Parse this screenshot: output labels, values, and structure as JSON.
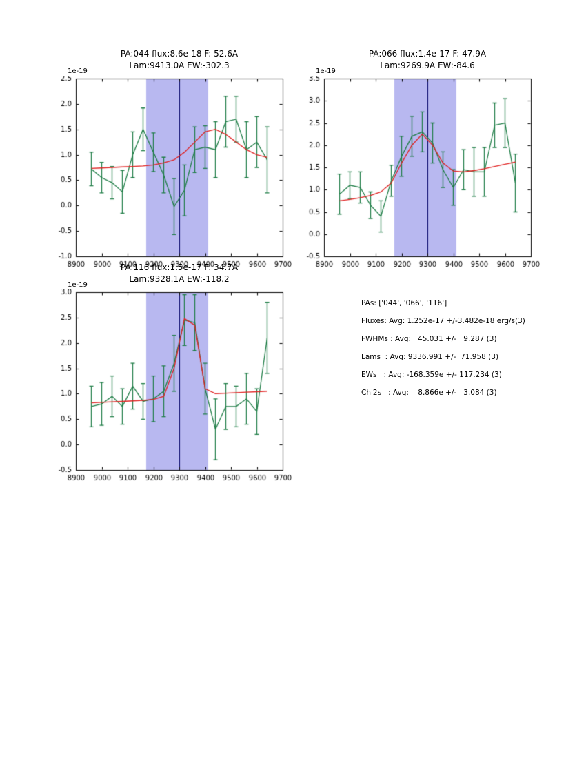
{
  "page": {
    "background": "#ffffff"
  },
  "stats": {
    "lines": [
      "PAs: ['044', '066', '116']",
      "Fluxes: Avg: 1.252e-17 +/-3.482e-18 erg/s(3)",
      "FWHMs : Avg:   45.031 +/-   9.287 (3)",
      "Lams  : Avg: 9336.991 +/-  71.958 (3)",
      "EWs   : Avg: -168.359e +/- 117.234 (3)",
      "Chi2s   : Avg:    8.866e +/-   3.084 (3)"
    ]
  },
  "chart_data": [
    {
      "type": "line",
      "title_line1": "PA:044 flux:8.6e-18 F: 52.6A",
      "title_line2": "Lam:9413.0A EW:-302.3",
      "offset_label": "1e-19",
      "xlabel": "",
      "ylabel": "",
      "xlim": [
        8900,
        9700
      ],
      "ylim": [
        -1.0,
        2.5
      ],
      "xticks": [
        8900,
        9000,
        9100,
        9200,
        9300,
        9400,
        9500,
        9600,
        9700
      ],
      "xtick_labels": [
        "8900",
        "9000",
        "9100",
        "9200",
        "9300",
        "9400",
        "9500",
        "9600",
        "9700"
      ],
      "yticks": [
        -1.0,
        -0.5,
        0.0,
        0.5,
        1.0,
        1.5,
        2.0,
        2.5
      ],
      "ytick_labels": [
        "-1.0",
        "-0.5",
        "0.0",
        "0.5",
        "1.0",
        "1.5",
        "2.0",
        "2.5"
      ],
      "band": [
        9172,
        9412
      ],
      "vline": 9300,
      "colors": {
        "band": "#b8b8f0",
        "vline": "#000066"
      },
      "series": [
        {
          "name": "spectrum-with-errorbars",
          "color": "#1e7d46",
          "x": [
            8960,
            9000,
            9040,
            9080,
            9120,
            9160,
            9200,
            9240,
            9280,
            9320,
            9360,
            9400,
            9440,
            9480,
            9520,
            9560,
            9600,
            9640
          ],
          "y": [
            0.72,
            0.55,
            0.45,
            0.27,
            1.0,
            1.5,
            1.05,
            0.6,
            -0.02,
            0.3,
            1.1,
            1.15,
            1.1,
            1.65,
            1.7,
            1.1,
            1.25,
            0.9
          ],
          "yerr": [
            0.33,
            0.3,
            0.32,
            0.42,
            0.45,
            0.42,
            0.38,
            0.35,
            0.55,
            0.5,
            0.45,
            0.42,
            0.55,
            0.5,
            0.45,
            0.55,
            0.5,
            0.65
          ]
        },
        {
          "name": "gaussian-fit",
          "color": "#e02020",
          "x": [
            8960,
            9000,
            9040,
            9080,
            9120,
            9160,
            9200,
            9240,
            9280,
            9320,
            9360,
            9400,
            9440,
            9480,
            9520,
            9560,
            9600,
            9640
          ],
          "y": [
            0.73,
            0.74,
            0.75,
            0.76,
            0.77,
            0.78,
            0.8,
            0.84,
            0.9,
            1.05,
            1.25,
            1.45,
            1.5,
            1.4,
            1.25,
            1.1,
            1.0,
            0.95
          ]
        }
      ]
    },
    {
      "type": "line",
      "title_line1": "PA:066 flux:1.4e-17 F: 47.9A",
      "title_line2": "Lam:9269.9A EW:-84.6",
      "offset_label": "1e-19",
      "xlabel": "",
      "ylabel": "",
      "xlim": [
        8900,
        9700
      ],
      "ylim": [
        -0.5,
        3.5
      ],
      "xticks": [
        8900,
        9000,
        9100,
        9200,
        9300,
        9400,
        9500,
        9600,
        9700
      ],
      "xtick_labels": [
        "8900",
        "9000",
        "9100",
        "9200",
        "9300",
        "9400",
        "9500",
        "9600",
        "9700"
      ],
      "yticks": [
        -0.5,
        0.0,
        0.5,
        1.0,
        1.5,
        2.0,
        2.5,
        3.0,
        3.5
      ],
      "ytick_labels": [
        "-0.5",
        "0.0",
        "0.5",
        "1.0",
        "1.5",
        "2.0",
        "2.5",
        "3.0",
        "3.5"
      ],
      "band": [
        9172,
        9412
      ],
      "vline": 9300,
      "colors": {
        "band": "#b8b8f0",
        "vline": "#000066"
      },
      "series": [
        {
          "name": "spectrum-with-errorbars",
          "color": "#1e7d46",
          "x": [
            8960,
            9000,
            9040,
            9080,
            9120,
            9160,
            9200,
            9240,
            9280,
            9320,
            9360,
            9400,
            9440,
            9480,
            9520,
            9560,
            9600,
            9640
          ],
          "y": [
            0.9,
            1.1,
            1.05,
            0.65,
            0.4,
            1.2,
            1.75,
            2.2,
            2.3,
            2.05,
            1.45,
            1.05,
            1.45,
            1.4,
            1.4,
            2.45,
            2.5,
            1.15
          ],
          "yerr": [
            0.45,
            0.3,
            0.35,
            0.3,
            0.35,
            0.35,
            0.45,
            0.45,
            0.45,
            0.45,
            0.4,
            0.4,
            0.45,
            0.55,
            0.55,
            0.5,
            0.55,
            0.65
          ]
        },
        {
          "name": "gaussian-fit",
          "color": "#e02020",
          "x": [
            8960,
            9000,
            9040,
            9080,
            9120,
            9160,
            9200,
            9240,
            9280,
            9320,
            9360,
            9400,
            9440,
            9480,
            9520,
            9560,
            9600,
            9640
          ],
          "y": [
            0.75,
            0.78,
            0.82,
            0.87,
            0.95,
            1.15,
            1.6,
            2.0,
            2.25,
            2.0,
            1.6,
            1.42,
            1.4,
            1.43,
            1.47,
            1.52,
            1.57,
            1.62
          ]
        }
      ]
    },
    {
      "type": "line",
      "title_line1": "PA:116 flux:1.5e-17 F: 34.7A",
      "title_line2": "Lam:9328.1A EW:-118.2",
      "offset_label": "1e-19",
      "xlabel": "",
      "ylabel": "",
      "xlim": [
        8900,
        9700
      ],
      "ylim": [
        -0.5,
        3.0
      ],
      "xticks": [
        8900,
        9000,
        9100,
        9200,
        9300,
        9400,
        9500,
        9600,
        9700
      ],
      "xtick_labels": [
        "8900",
        "9000",
        "9100",
        "9200",
        "9300",
        "9400",
        "9500",
        "9600",
        "9700"
      ],
      "yticks": [
        -0.5,
        0.0,
        0.5,
        1.0,
        1.5,
        2.0,
        2.5,
        3.0
      ],
      "ytick_labels": [
        "-0.5",
        "0.0",
        "0.5",
        "1.0",
        "1.5",
        "2.0",
        "2.5",
        "3.0"
      ],
      "band": [
        9172,
        9412
      ],
      "vline": 9300,
      "colors": {
        "band": "#b8b8f0",
        "vline": "#000066"
      },
      "series": [
        {
          "name": "spectrum-with-errorbars",
          "color": "#1e7d46",
          "x": [
            8960,
            9000,
            9040,
            9080,
            9120,
            9160,
            9200,
            9240,
            9280,
            9320,
            9360,
            9400,
            9440,
            9480,
            9520,
            9560,
            9600,
            9640
          ],
          "y": [
            0.75,
            0.8,
            0.95,
            0.75,
            1.15,
            0.85,
            0.9,
            1.05,
            1.6,
            2.45,
            2.4,
            1.1,
            0.3,
            0.75,
            0.75,
            0.9,
            0.65,
            2.1
          ],
          "yerr": [
            0.4,
            0.42,
            0.4,
            0.35,
            0.45,
            0.35,
            0.45,
            0.5,
            0.55,
            0.5,
            0.55,
            0.5,
            0.6,
            0.45,
            0.4,
            0.5,
            0.45,
            0.7
          ]
        },
        {
          "name": "gaussian-fit",
          "color": "#e02020",
          "x": [
            8960,
            9000,
            9040,
            9080,
            9120,
            9160,
            9200,
            9240,
            9280,
            9320,
            9360,
            9400,
            9440,
            9480,
            9520,
            9560,
            9600,
            9640
          ],
          "y": [
            0.82,
            0.83,
            0.84,
            0.85,
            0.86,
            0.87,
            0.89,
            0.95,
            1.5,
            2.48,
            2.35,
            1.1,
            1.0,
            1.01,
            1.02,
            1.03,
            1.04,
            1.05
          ]
        }
      ]
    }
  ]
}
